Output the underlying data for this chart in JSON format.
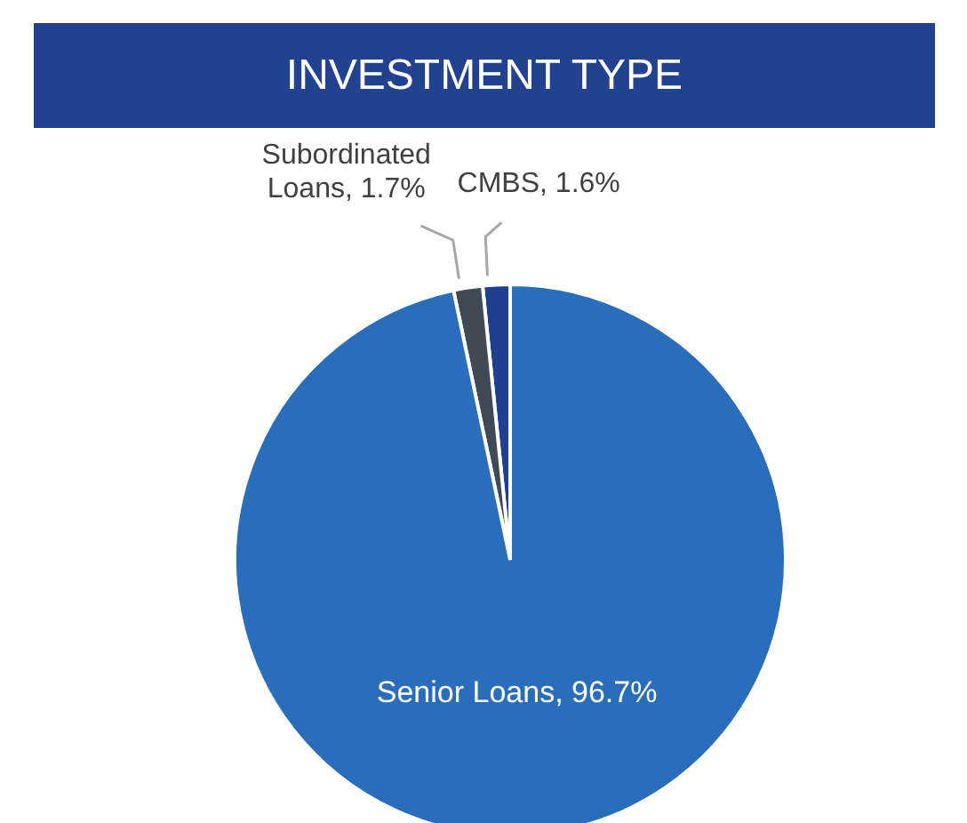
{
  "chart_data": {
    "type": "pie",
    "title": "INVESTMENT TYPE",
    "categories": [
      "CMBS",
      "Subordinated Loans",
      "Senior Loans"
    ],
    "values": [
      1.6,
      1.7,
      96.7
    ],
    "value_labels": [
      "1.6%",
      "1.7%",
      "96.7%"
    ],
    "colors": [
      "#1f3f8f",
      "#3f4a55",
      "#2a6ebb"
    ]
  }
}
